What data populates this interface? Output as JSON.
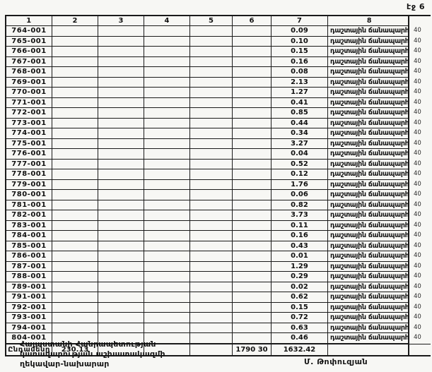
{
  "page": {
    "page_label": "էջ 6"
  },
  "table": {
    "headers": [
      "1",
      "2",
      "3",
      "4",
      "5",
      "6",
      "7",
      "8"
    ],
    "rows": [
      {
        "id": "764-001",
        "v7": "0.09",
        "v8": "դաշտային ճանապարհ",
        "note": "40"
      },
      {
        "id": "765-001",
        "v7": "0.10",
        "v8": "դաշտային ճանապարհ",
        "note": "40"
      },
      {
        "id": "766-001",
        "v7": "0.15",
        "v8": "դաշտային ճանապարհ",
        "note": "40"
      },
      {
        "id": "767-001",
        "v7": "0.16",
        "v8": "դաշտային ճանապարհ",
        "note": "40"
      },
      {
        "id": "768-001",
        "v7": "0.08",
        "v8": "դաշտային ճանապարհ",
        "note": "40"
      },
      {
        "id": "769-001",
        "v7": "2.13",
        "v8": "դաշտային ճանապարհ",
        "note": "40"
      },
      {
        "id": "770-001",
        "v7": "1.27",
        "v8": "դաշտային ճանապարհ",
        "note": "40"
      },
      {
        "id": "771-001",
        "v7": "0.41",
        "v8": "դաշտային ճանապարհ",
        "note": "40"
      },
      {
        "id": "772-001",
        "v7": "0.85",
        "v8": "դաշտային ճանապարհ",
        "note": "40"
      },
      {
        "id": "773-001",
        "v7": "0.44",
        "v8": "դաշտային ճանապարհ",
        "note": "40"
      },
      {
        "id": "774-001",
        "v7": "0.34",
        "v8": "դաշտային ճանապարհ",
        "note": "40"
      },
      {
        "id": "775-001",
        "v7": "3.27",
        "v8": "դաշտային ճանապարհ",
        "note": "40"
      },
      {
        "id": "776-001",
        "v7": "0.04",
        "v8": "դաշտային ճանապարհ",
        "note": "40"
      },
      {
        "id": "777-001",
        "v7": "0.52",
        "v8": "դաշտային ճանապարհ",
        "note": "40"
      },
      {
        "id": "778-001",
        "v7": "0.12",
        "v8": "դաշտային ճանապարհ",
        "note": "40"
      },
      {
        "id": "779-001",
        "v7": "1.76",
        "v8": "դաշտային ճանապարհ",
        "note": "40"
      },
      {
        "id": "780-001",
        "v7": "0.06",
        "v8": "դաշտային ճանապարհ",
        "note": "40"
      },
      {
        "id": "781-001",
        "v7": "0.82",
        "v8": "դաշտային ճանապարհ",
        "note": "40"
      },
      {
        "id": "782-001",
        "v7": "3.73",
        "v8": "դաշտային ճանապարհ",
        "note": "40"
      },
      {
        "id": "783-001",
        "v7": "0.11",
        "v8": "դաշտային ճանապարհ",
        "note": "40"
      },
      {
        "id": "784-001",
        "v7": "0.16",
        "v8": "դաշտային ճանապարհ",
        "note": "40"
      },
      {
        "id": "785-001",
        "v7": "0.43",
        "v8": "դաշտային ճանապարհ",
        "note": "40"
      },
      {
        "id": "786-001",
        "v7": "0.01",
        "v8": "դաշտային ճանապարհ",
        "note": "40"
      },
      {
        "id": "787-001",
        "v7": "1.29",
        "v8": "դաշտային ճանապարհ",
        "note": "40"
      },
      {
        "id": "788-001",
        "v7": "0.29",
        "v8": "դաշտային ճանապարհ",
        "note": "40"
      },
      {
        "id": "789-001",
        "v7": "0.02",
        "v8": "դաշտային ճանապարհ",
        "note": "40"
      },
      {
        "id": "791-001",
        "v7": "0.62",
        "v8": "դաշտային ճանապարհ",
        "note": "40"
      },
      {
        "id": "792-001",
        "v7": "0.15",
        "v8": "դաշտային ճանապարհ",
        "note": "40"
      },
      {
        "id": "793-001",
        "v7": "0.72",
        "v8": "դաշտային ճանապարհ",
        "note": "40"
      },
      {
        "id": "794-001",
        "v7": "0.63",
        "v8": "դաշտային ճանապարհ",
        "note": "40"
      },
      {
        "id": "804-001",
        "v7": "0.46",
        "v8": "դաշտային ճանապարհ",
        "note": "40"
      }
    ],
    "total": {
      "label": "Ընդամենը",
      "col2": "230.13",
      "col6": "1790 30",
      "col7": "1632.42"
    }
  },
  "footer": {
    "line1": "Հայաստանի Հանրապետության",
    "line2": "կառավարության աշխատակազմի",
    "line3": "ղեկավար-նախարար",
    "signature": "Մ. Թոփուզյան"
  }
}
